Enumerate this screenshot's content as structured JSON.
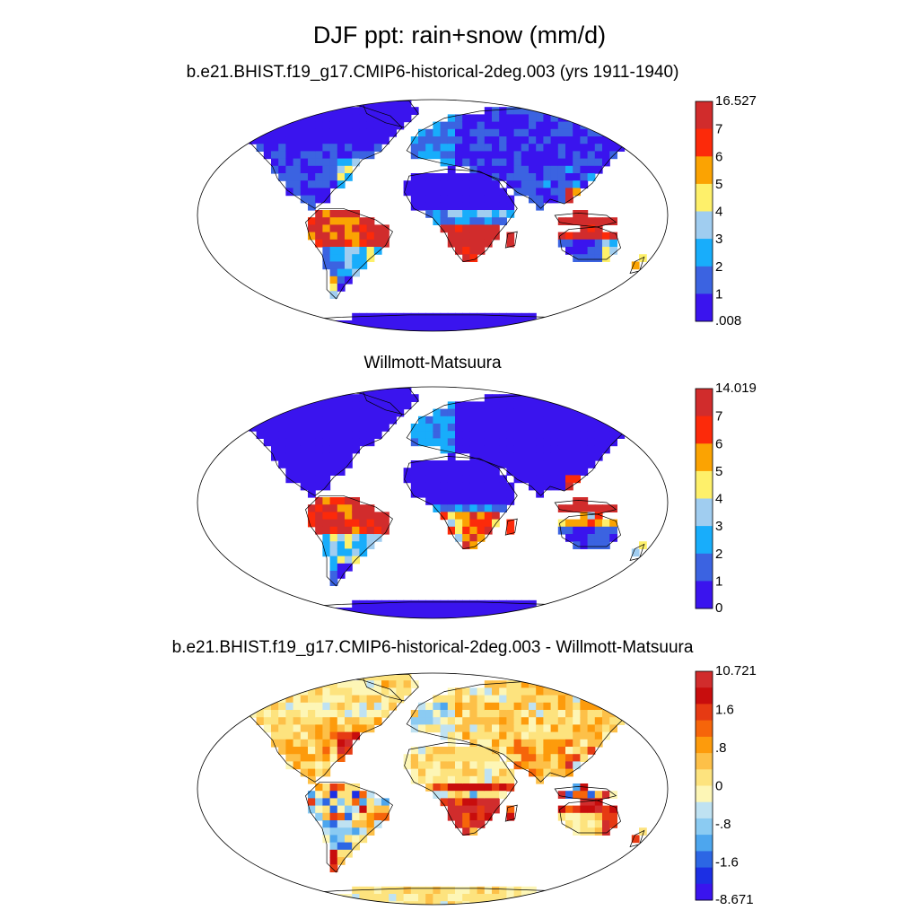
{
  "figure": {
    "title": "DJF ppt: rain+snow (mm/d)"
  },
  "colors": {
    "abs": [
      "#3a14ee",
      "#3b63e1",
      "#18adfb",
      "#a0cdf0",
      "#fef06a",
      "#fba302",
      "#fc2a0a",
      "#d12c2c"
    ],
    "diff": [
      "#3a14ee",
      "#1c2fe4",
      "#2c66e4",
      "#4da6ee",
      "#8bcbf2",
      "#bfe2f2",
      "#fdf6b6",
      "#fde37e",
      "#fdc048",
      "#fd9b0c",
      "#f6650a",
      "#e63a13",
      "#c80d0d",
      "#d12c2c"
    ],
    "land_outline": "#000000",
    "ocean": "#ffffff"
  },
  "panels": [
    {
      "title": "b.e21.BHIST.f19_g17.CMIP6-historical-2deg.003 (yrs 1911-1940)",
      "field": "model",
      "colorbar": {
        "palette": "abs",
        "labels": [
          "16.527",
          "7",
          "6",
          "5",
          "4",
          "3",
          "2",
          "1",
          ".008"
        ]
      }
    },
    {
      "title": "Willmott-Matsuura",
      "field": "obs",
      "colorbar": {
        "palette": "abs",
        "labels": [
          "14.019",
          "7",
          "6",
          "5",
          "4",
          "3",
          "2",
          "1",
          "0"
        ]
      }
    },
    {
      "title": "b.e21.BHIST.f19_g17.CMIP6-historical-2deg.003 - Willmott-Matsuura",
      "field": "diff",
      "colorbar": {
        "palette": "diff",
        "labels": [
          "10.721",
          "1.6",
          ".8",
          "0",
          "-.8",
          "-1.6",
          "-8.671"
        ]
      }
    }
  ]
}
